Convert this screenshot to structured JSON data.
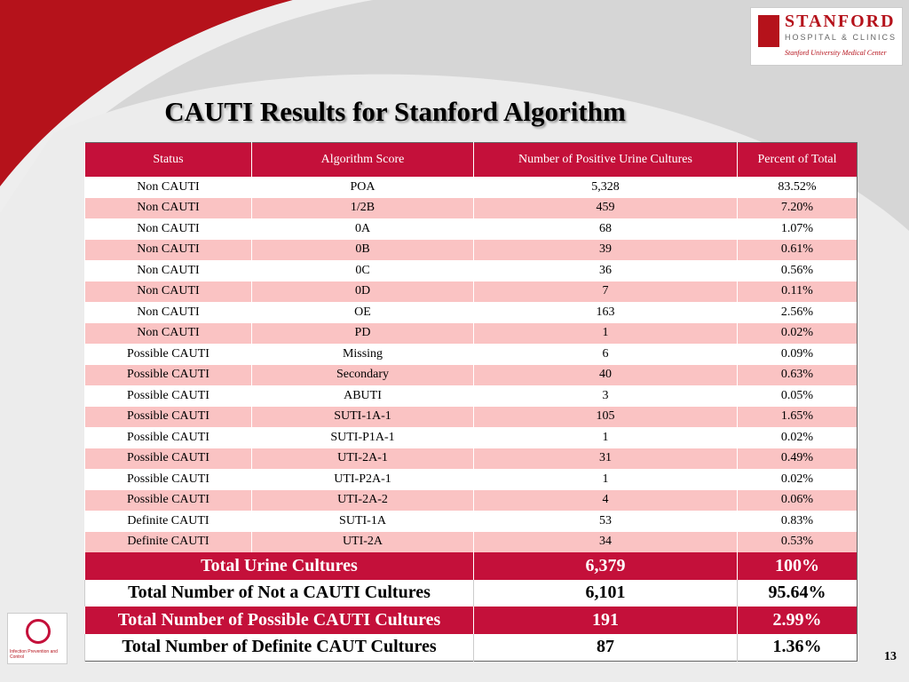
{
  "logo": {
    "name": "STANFORD",
    "subtitle": "HOSPITAL & CLINICS",
    "center": "Stanford University Medical Center"
  },
  "title": "CAUTI Results for Stanford Algorithm",
  "table": {
    "header": [
      "Status",
      "Algorithm Score",
      "Number of Positive Urine Cultures",
      "Percent of Total"
    ],
    "rows": [
      [
        "Non CAUTI",
        "POA",
        "5,328",
        "83.52%"
      ],
      [
        "Non CAUTI",
        "1/2B",
        "459",
        "7.20%"
      ],
      [
        "Non CAUTI",
        "0A",
        "68",
        "1.07%"
      ],
      [
        "Non CAUTI",
        "0B",
        "39",
        "0.61%"
      ],
      [
        "Non CAUTI",
        "0C",
        "36",
        "0.56%"
      ],
      [
        "Non CAUTI",
        "0D",
        "7",
        "0.11%"
      ],
      [
        "Non CAUTI",
        "OE",
        "163",
        "2.56%"
      ],
      [
        "Non CAUTI",
        "PD",
        "1",
        "0.02%"
      ],
      [
        "Possible CAUTI",
        "Missing",
        "6",
        "0.09%"
      ],
      [
        "Possible CAUTI",
        "Secondary",
        "40",
        "0.63%"
      ],
      [
        "Possible CAUTI",
        "ABUTI",
        "3",
        "0.05%"
      ],
      [
        "Possible CAUTI",
        "SUTI-1A-1",
        "105",
        "1.65%"
      ],
      [
        "Possible CAUTI",
        "SUTI-P1A-1",
        "1",
        "0.02%"
      ],
      [
        "Possible CAUTI",
        "UTI-2A-1",
        "31",
        "0.49%"
      ],
      [
        "Possible CAUTI",
        "UTI-P2A-1",
        "1",
        "0.02%"
      ],
      [
        "Possible CAUTI",
        "UTI-2A-2",
        "4",
        "0.06%"
      ],
      [
        "Definite CAUTI",
        "SUTI-1A",
        "53",
        "0.83%"
      ],
      [
        "Definite CAUTI",
        "UTI-2A",
        "34",
        "0.53%"
      ]
    ],
    "totals": [
      [
        "Total Urine Cultures",
        "6,379",
        "100%"
      ],
      [
        "Total Number of Not a CAUTI Cultures",
        "6,101",
        "95.64%"
      ],
      [
        "Total Number of Possible CAUTI Cultures",
        "191",
        "2.99%"
      ],
      [
        "Total Number of Definite CAUT Cultures",
        "87",
        "1.36%"
      ]
    ]
  },
  "badge": "Infection Prevention and Control",
  "page_number": "13"
}
